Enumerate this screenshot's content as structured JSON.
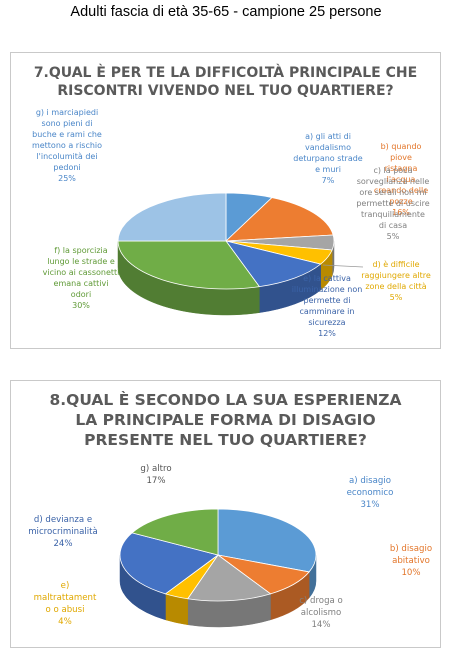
{
  "header": "Adulti fascia di età 35-65 - campione 25 persone",
  "charts": [
    {
      "type": "pie",
      "title_line1": "7.QUAL È PER TE LA DIFFICOLTÀ PRINCIPALE CHE",
      "title_line2": "RISCONTRI VIVENDO NEL TUO QUARTIERE?",
      "slices": [
        {
          "name": "a) gli atti di vandalismo deturpano strade e muri",
          "percent_label": "7%",
          "value": 7,
          "color": "#5b9bd5",
          "lines": [
            "a) gli atti di",
            "vandalismo",
            "deturpano strade",
            "e muri"
          ]
        },
        {
          "name": "b) quando piove ristagna l'acqua creando delle pozze",
          "percent_label": "16%",
          "value": 16,
          "color": "#ed7d31",
          "lines": [
            "b) quando piove",
            "ristagna l'acqua",
            "creando delle",
            "pozze"
          ]
        },
        {
          "name": "c) la poca sorveglianza nelle ore serali non mi permette di uscire tranquillamente di casa",
          "percent_label": "5%",
          "value": 5,
          "color": "#a5a5a5",
          "lines": [
            "c) la poca",
            "sorveglianza nelle",
            "ore serali non mi",
            "permette di uscire",
            "tranquillamente",
            "di casa"
          ]
        },
        {
          "name": "d) è difficile raggiungere altre zone della città",
          "percent_label": "5%",
          "value": 5,
          "color": "#ffc000",
          "lines": [
            "d) è difficile",
            "raggiungere altre",
            "zone della città"
          ]
        },
        {
          "name": "e) la cattiva illuminazione non permette di camminare in sicurezza",
          "percent_label": "12%",
          "value": 12,
          "color": "#4472c4",
          "lines": [
            "e) la cattiva",
            "illuminazione non",
            "permette di",
            "camminare in",
            "sicurezza"
          ]
        },
        {
          "name": "f) la sporcizia lungo le strade e vicino ai cassonetti emana cattivi odori",
          "percent_label": "30%",
          "value": 30,
          "color": "#70ad47",
          "lines": [
            "f) la sporcizia",
            "lungo le strade e",
            "vicino ai cassonetti",
            "emana cattivi",
            "odori"
          ]
        },
        {
          "name": "g) i marciapiedi sono pieni di buche e rami che mettono a rischio l'incolumità dei pedoni",
          "percent_label": "25%",
          "value": 25,
          "color": "#9dc3e6",
          "lines": [
            "g) i marciapiedi",
            "sono pieni di",
            "buche e rami che",
            "mettono a rischio",
            "l'incolumità dei",
            "pedoni"
          ]
        }
      ]
    },
    {
      "type": "pie",
      "title_line1": "8.QUAL È SECONDO LA SUA ESPERIENZA",
      "title_line2": "LA PRINCIPALE FORMA DI DISAGIO",
      "title_line3": "PRESENTE NEL TUO QUARTIERE?",
      "slices": [
        {
          "name": "a) disagio economico",
          "percent_label": "31%",
          "value": 31,
          "color": "#5b9bd5",
          "lines": [
            "a) disagio",
            "economico"
          ]
        },
        {
          "name": "b) disagio abitativo",
          "percent_label": "10%",
          "value": 10,
          "color": "#ed7d31",
          "lines": [
            "b) disagio",
            "abitativo"
          ]
        },
        {
          "name": "c) droga o alcolismo",
          "percent_label": "14%",
          "value": 14,
          "color": "#a5a5a5",
          "lines": [
            "c) droga o",
            "alcolismo"
          ]
        },
        {
          "name": "e) maltrattamenti o abusi",
          "percent_label": "4%",
          "value": 4,
          "color": "#ffc000",
          "lines": [
            "e)",
            "maltrattament",
            "o o abusi"
          ]
        },
        {
          "name": "d) devianza e microcriminalità",
          "percent_label": "24%",
          "value": 24,
          "color": "#4472c4",
          "lines": [
            "d) devianza e",
            "microcriminalità"
          ]
        },
        {
          "name": "g) altro",
          "percent_label": "17%",
          "value": 17,
          "color": "#70ad47",
          "lines": [
            "g) altro"
          ]
        }
      ]
    }
  ],
  "chart_data": [
    {
      "type": "pie",
      "title": "7.QUAL È PER TE LA DIFFICOLTÀ PRINCIPALE CHE RISCONTRI VIVENDO NEL TUO QUARTIERE?",
      "categories": [
        "a) gli atti di vandalismo deturpano strade e muri",
        "b) quando piove ristagna l'acqua creando delle pozze",
        "c) la poca sorveglianza nelle ore serali non mi permette di uscire tranquillamente di casa",
        "d) è difficile raggiungere altre zone della città",
        "e) la cattiva illuminazione non permette di camminare in sicurezza",
        "f) la sporcizia lungo le strade e vicino ai cassonetti emana cattivi odori",
        "g) i marciapiedi sono pieni di buche e rami che mettono a rischio l'incolumità dei pedoni"
      ],
      "values": [
        7,
        16,
        5,
        5,
        12,
        30,
        25
      ],
      "style": "3d-pie"
    },
    {
      "type": "pie",
      "title": "8.QUAL È SECONDO LA SUA ESPERIENZA LA PRINCIPALE FORMA DI DISAGIO PRESENTE NEL TUO QUARTIERE?",
      "categories": [
        "a) disagio economico",
        "b) disagio abitativo",
        "c) droga o alcolismo",
        "e) maltrattamenti o abusi",
        "d) devianza e microcriminalità",
        "g) altro"
      ],
      "values": [
        31,
        10,
        14,
        4,
        24,
        17
      ],
      "style": "3d-pie"
    }
  ]
}
